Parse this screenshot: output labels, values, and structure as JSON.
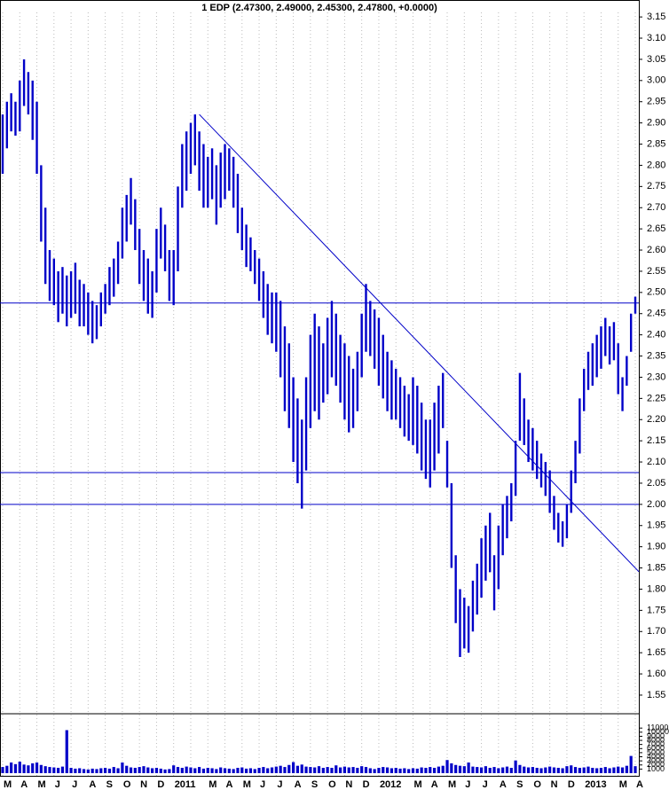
{
  "chart_data": {
    "type": "ohlc",
    "title": "1 EDP (2.47300, 2.49000, 2.45300, 2.47800, +0.0000)",
    "color": "#0000c8",
    "line_color": "#0000c8",
    "categories": [
      "M",
      null,
      null,
      null,
      "A",
      null,
      null,
      null,
      "M",
      null,
      null,
      null,
      "J",
      null,
      null,
      null,
      "J",
      null,
      null,
      null,
      "A",
      null,
      null,
      null,
      "S",
      null,
      null,
      null,
      "O",
      null,
      null,
      null,
      "N",
      null,
      null,
      null,
      "D",
      null,
      null,
      null,
      "2011",
      null,
      null,
      null,
      null,
      null,
      null,
      null,
      "M",
      null,
      null,
      null,
      "A",
      null,
      null,
      null,
      "M",
      null,
      null,
      null,
      "J",
      null,
      null,
      null,
      "J",
      null,
      null,
      null,
      "A",
      null,
      null,
      null,
      "S",
      null,
      null,
      null,
      "O",
      null,
      null,
      null,
      "N",
      null,
      null,
      null,
      "D",
      null,
      null,
      null,
      "2012",
      null,
      null,
      null,
      null,
      null,
      null,
      null,
      "M",
      null,
      null,
      null,
      "A",
      null,
      null,
      null,
      "M",
      null,
      null,
      null,
      "J",
      null,
      null,
      null,
      "J",
      null,
      null,
      null,
      "A",
      null,
      null,
      null,
      "S",
      null,
      null,
      null,
      "O",
      null,
      null,
      null,
      "N",
      null,
      null,
      null,
      "D",
      null,
      null,
      null,
      "2013",
      null,
      null,
      null,
      null,
      null,
      null,
      null,
      "M",
      null,
      null,
      null,
      "A"
    ],
    "high": [
      2.92,
      2.95,
      2.97,
      2.95,
      3.0,
      3.05,
      3.02,
      3.0,
      2.95,
      2.8,
      2.7,
      2.6,
      2.58,
      2.55,
      2.56,
      2.54,
      2.55,
      2.57,
      2.53,
      2.52,
      2.5,
      2.48,
      2.47,
      2.5,
      2.52,
      2.56,
      2.58,
      2.62,
      2.7,
      2.73,
      2.77,
      2.72,
      2.65,
      2.6,
      2.58,
      2.55,
      2.65,
      2.7,
      2.66,
      2.6,
      2.6,
      2.75,
      2.85,
      2.88,
      2.9,
      2.92,
      2.88,
      2.85,
      2.82,
      2.84,
      2.8,
      2.83,
      2.85,
      2.84,
      2.82,
      2.78,
      2.7,
      2.66,
      2.63,
      2.6,
      2.58,
      2.55,
      2.52,
      2.5,
      2.5,
      2.48,
      2.42,
      2.38,
      2.3,
      2.25,
      2.2,
      2.3,
      2.4,
      2.45,
      2.42,
      2.38,
      2.44,
      2.48,
      2.45,
      2.4,
      2.38,
      2.35,
      2.32,
      2.36,
      2.45,
      2.52,
      2.48,
      2.46,
      2.44,
      2.4,
      2.36,
      2.34,
      2.32,
      2.3,
      2.28,
      2.26,
      2.3,
      2.28,
      2.24,
      2.2,
      2.2,
      2.24,
      2.28,
      2.31,
      2.15,
      2.05,
      1.88,
      1.8,
      1.78,
      1.76,
      1.82,
      1.86,
      1.92,
      1.95,
      1.98,
      1.88,
      1.95,
      2.0,
      2.02,
      2.05,
      2.15,
      2.31,
      2.25,
      2.2,
      2.18,
      2.15,
      2.12,
      2.1,
      2.08,
      2.02,
      1.98,
      1.96,
      2.0,
      2.08,
      2.15,
      2.25,
      2.32,
      2.36,
      2.38,
      2.4,
      2.42,
      2.44,
      2.42,
      2.43,
      2.38,
      2.3,
      2.35,
      2.45,
      2.49
    ],
    "low": [
      2.78,
      2.84,
      2.88,
      2.87,
      2.88,
      2.94,
      2.92,
      2.86,
      2.78,
      2.62,
      2.52,
      2.48,
      2.47,
      2.43,
      2.45,
      2.42,
      2.44,
      2.45,
      2.42,
      2.42,
      2.4,
      2.38,
      2.39,
      2.42,
      2.45,
      2.47,
      2.49,
      2.52,
      2.58,
      2.62,
      2.66,
      2.6,
      2.52,
      2.48,
      2.45,
      2.44,
      2.5,
      2.58,
      2.55,
      2.48,
      2.47,
      2.55,
      2.7,
      2.74,
      2.78,
      2.8,
      2.74,
      2.7,
      2.7,
      2.72,
      2.66,
      2.7,
      2.72,
      2.74,
      2.7,
      2.64,
      2.6,
      2.56,
      2.55,
      2.52,
      2.48,
      2.44,
      2.4,
      2.38,
      2.36,
      2.3,
      2.22,
      2.18,
      2.1,
      2.05,
      1.99,
      2.08,
      2.18,
      2.22,
      2.2,
      2.24,
      2.26,
      2.3,
      2.28,
      2.24,
      2.2,
      2.17,
      2.18,
      2.22,
      2.3,
      2.36,
      2.35,
      2.32,
      2.28,
      2.25,
      2.22,
      2.2,
      2.2,
      2.18,
      2.16,
      2.15,
      2.14,
      2.12,
      2.08,
      2.06,
      2.04,
      2.08,
      2.12,
      2.18,
      2.04,
      1.85,
      1.72,
      1.64,
      1.66,
      1.65,
      1.7,
      1.74,
      1.78,
      1.82,
      1.84,
      1.75,
      1.8,
      1.88,
      1.92,
      1.96,
      2.02,
      2.15,
      2.14,
      2.1,
      2.08,
      2.06,
      2.04,
      2.02,
      1.98,
      1.94,
      1.91,
      1.9,
      1.92,
      1.98,
      2.05,
      2.12,
      2.22,
      2.27,
      2.28,
      2.3,
      2.32,
      2.35,
      2.33,
      2.34,
      2.26,
      2.22,
      2.28,
      2.36,
      2.45
    ],
    "volume": [
      1500,
      1800,
      2600,
      2200,
      2800,
      2100,
      1900,
      2400,
      2600,
      2000,
      1700,
      1500,
      1400,
      1300,
      1600,
      10500,
      1300,
      1100,
      1200,
      1000,
      900,
      1100,
      1000,
      1200,
      1300,
      1100,
      1500,
      1200,
      2600,
      1800,
      1400,
      1300,
      1500,
      1700,
      1400,
      1200,
      1300,
      1100,
      900,
      1000,
      1900,
      1500,
      1300,
      1600,
      1400,
      1200,
      1500,
      1100,
      1300,
      1200,
      1000,
      1400,
      1200,
      1100,
      1000,
      1300,
      1400,
      1100,
      1200,
      1000,
      1300,
      1500,
      1200,
      1400,
      1600,
      1800,
      1500,
      2000,
      2700,
      1800,
      2100,
      1600,
      1500,
      1400,
      1700,
      1300,
      1500,
      1300,
      1900,
      1400,
      1600,
      1400,
      1500,
      1300,
      1700,
      1500,
      1200,
      1000,
      1300,
      1500,
      1400,
      1200,
      1300,
      1100,
      1200,
      1000,
      1200,
      1100,
      1400,
      1300,
      1500,
      1300,
      1600,
      1800,
      3200,
      2400,
      2000,
      1800,
      1700,
      2600,
      1600,
      1500,
      1400,
      1700,
      1300,
      1500,
      1200,
      1400,
      1600,
      1300,
      3100,
      2000,
      1600,
      1400,
      1500,
      1300,
      1200,
      1400,
      1600,
      1400,
      1300,
      1200,
      1700,
      1900,
      1500,
      1300,
      1400,
      1600,
      1300,
      1200,
      1300,
      1500,
      1200,
      1400,
      1600,
      1400,
      1800,
      4200,
      1700
    ],
    "ylim": [
      1.506,
      3.19
    ],
    "yticks": [
      {
        "value": 1.55,
        "label": "1.55"
      },
      {
        "value": 1.6,
        "label": "1.60"
      },
      {
        "value": 1.65,
        "label": "1.65"
      },
      {
        "value": 1.7,
        "label": "1.70"
      },
      {
        "value": 1.75,
        "label": "1.75"
      },
      {
        "value": 1.8,
        "label": "1.80"
      },
      {
        "value": 1.85,
        "label": "1.85"
      },
      {
        "value": 1.9,
        "label": "1.90"
      },
      {
        "value": 1.95,
        "label": "1.95"
      },
      {
        "value": 2.0,
        "label": "2.00"
      },
      {
        "value": 2.05,
        "label": "2.05"
      },
      {
        "value": 2.1,
        "label": "2.10"
      },
      {
        "value": 2.15,
        "label": "2.15"
      },
      {
        "value": 2.2,
        "label": "2.20"
      },
      {
        "value": 2.25,
        "label": "2.25"
      },
      {
        "value": 2.3,
        "label": "2.30"
      },
      {
        "value": 2.35,
        "label": "2.35"
      },
      {
        "value": 2.4,
        "label": "2.40"
      },
      {
        "value": 2.45,
        "label": "2.45"
      },
      {
        "value": 2.5,
        "label": "2.50"
      },
      {
        "value": 2.55,
        "label": "2.55"
      },
      {
        "value": 2.6,
        "label": "2.60"
      },
      {
        "value": 2.65,
        "label": "2.65"
      },
      {
        "value": 2.7,
        "label": "2.70"
      },
      {
        "value": 2.75,
        "label": "2.75"
      },
      {
        "value": 2.8,
        "label": "2.80"
      },
      {
        "value": 2.85,
        "label": "2.85"
      },
      {
        "value": 2.9,
        "label": "2.90"
      },
      {
        "value": 2.95,
        "label": "2.95"
      },
      {
        "value": 3.0,
        "label": "3.00"
      },
      {
        "value": 3.05,
        "label": "3.05"
      },
      {
        "value": 3.1,
        "label": "3.10"
      },
      {
        "value": 3.15,
        "label": "3.15"
      }
    ],
    "volume_ylim": [
      0,
      14500
    ],
    "volume_yticks": [
      1000,
      2000,
      3000,
      4000,
      5000,
      6000,
      7000,
      8000,
      9000,
      10000,
      11000
    ],
    "hlines": [
      2.475,
      2.075,
      2.0
    ],
    "trendline": {
      "x": [
        46,
        148
      ],
      "y": [
        2.92,
        1.85
      ]
    }
  }
}
